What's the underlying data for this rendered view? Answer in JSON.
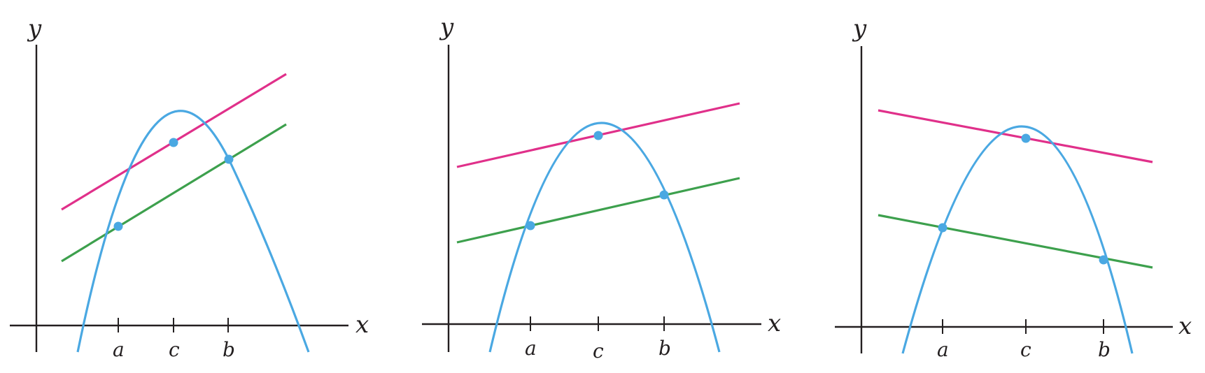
{
  "colors": {
    "axis": "#231f20",
    "curve": "#4aa8e2",
    "tangent": "#e0308a",
    "secant": "#3da04d"
  },
  "panels": [
    {
      "id": "left",
      "axis_labels": {
        "x": "x",
        "y": "y"
      },
      "tick_labels": {
        "a": "a",
        "c": "c",
        "b": "b"
      }
    },
    {
      "id": "middle",
      "axis_labels": {
        "x": "x",
        "y": "y"
      },
      "tick_labels": {
        "a": "a",
        "c": "c",
        "b": "b"
      }
    },
    {
      "id": "right",
      "axis_labels": {
        "x": "x",
        "y": "y"
      },
      "tick_labels": {
        "a": "a",
        "c": "c",
        "b": "b"
      }
    }
  ]
}
